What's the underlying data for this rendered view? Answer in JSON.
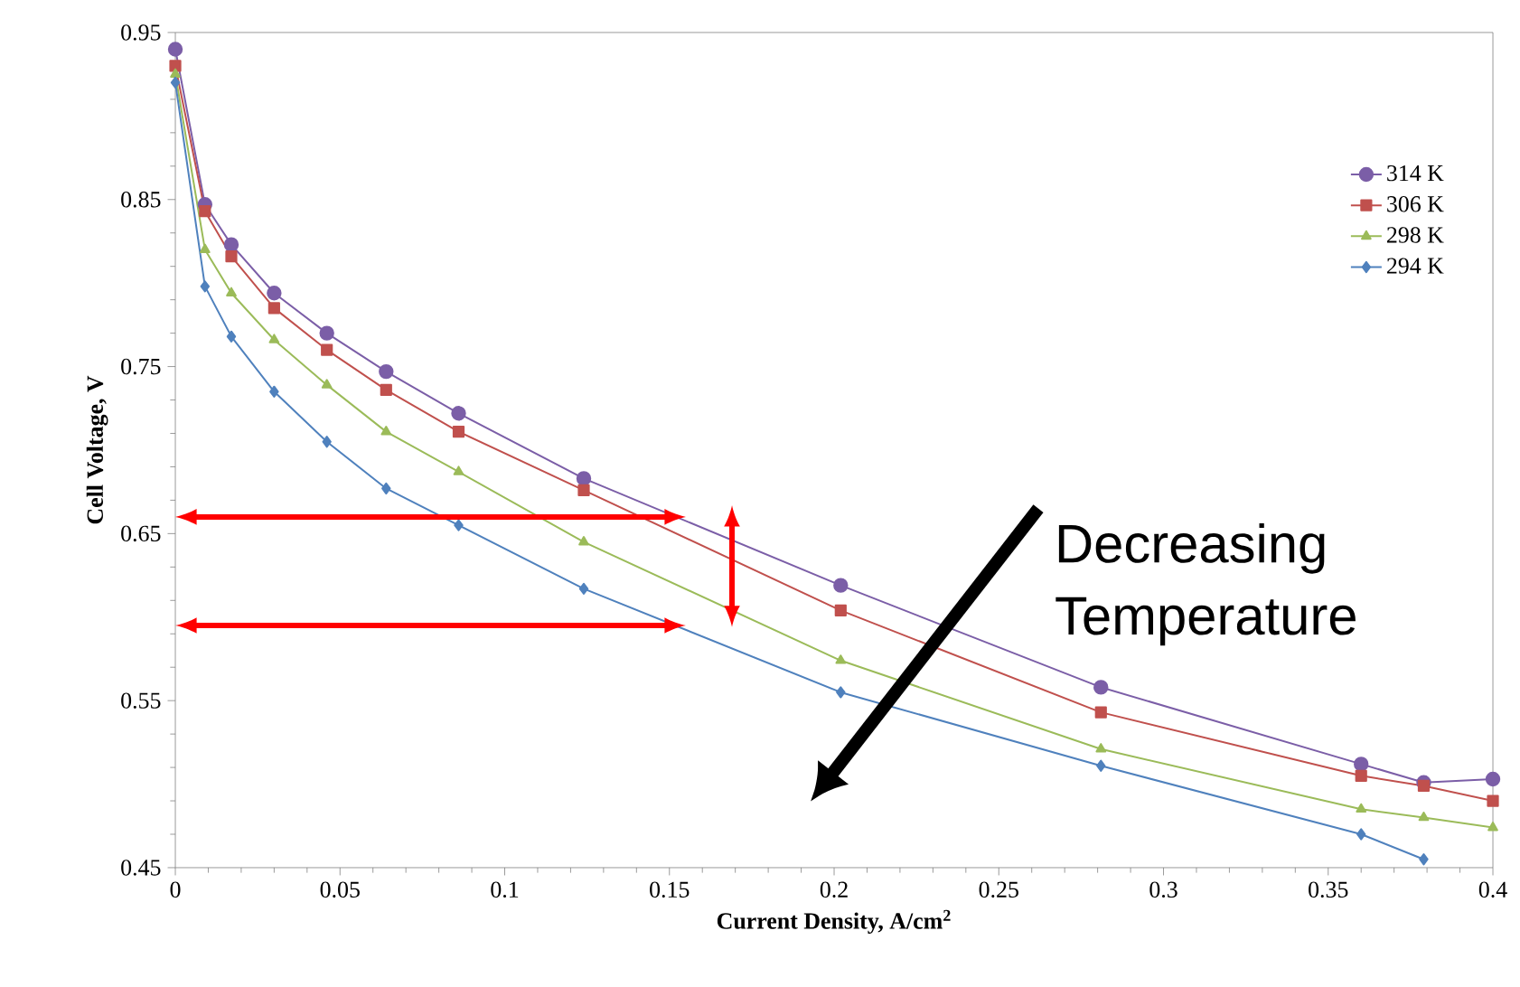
{
  "chart_data": {
    "type": "line",
    "xlabel": "Current Density, A/cm$^{2}$",
    "ylabel": "Cell Voltage, V",
    "x": [
      0,
      0.009,
      0.017,
      0.03,
      0.046,
      0.064,
      0.086,
      0.124,
      0.202,
      0.281,
      0.36,
      0.379,
      0.4
    ],
    "series": [
      {
        "name": "314 K",
        "color": "#7b5ea7",
        "marker": "circle",
        "values": [
          0.94,
          0.847,
          0.823,
          0.794,
          0.77,
          0.747,
          0.722,
          0.683,
          0.619,
          0.558,
          0.512,
          0.501,
          0.503
        ]
      },
      {
        "name": "306 K",
        "color": "#c0504d",
        "marker": "square",
        "values": [
          0.93,
          0.843,
          0.816,
          0.785,
          0.76,
          0.736,
          0.711,
          0.676,
          0.604,
          0.543,
          0.505,
          0.499,
          0.49
        ]
      },
      {
        "name": "298 K",
        "color": "#9bbb59",
        "marker": "triangle",
        "values": [
          0.925,
          0.82,
          0.794,
          0.766,
          0.739,
          0.711,
          0.687,
          0.645,
          0.574,
          0.521,
          0.485,
          0.48,
          0.474
        ]
      },
      {
        "name": "294 K",
        "color": "#4f81bd",
        "marker": "diamond",
        "values": [
          0.92,
          0.798,
          0.768,
          0.735,
          0.705,
          0.677,
          0.655,
          0.617,
          0.555,
          0.511,
          0.47,
          0.455,
          null
        ]
      }
    ],
    "xlim": [
      0,
      0.4
    ],
    "xticks": [
      0,
      0.05,
      0.1,
      0.15,
      0.2,
      0.25,
      0.3,
      0.35,
      0.4
    ],
    "ylim": [
      0.45,
      0.95
    ],
    "yticks": [
      0.45,
      0.55,
      0.65,
      0.75,
      0.85,
      0.95
    ],
    "legend": "top right",
    "grid": false,
    "line_style": "solid",
    "annotations": [
      "Decreasing Temperature"
    ]
  }
}
